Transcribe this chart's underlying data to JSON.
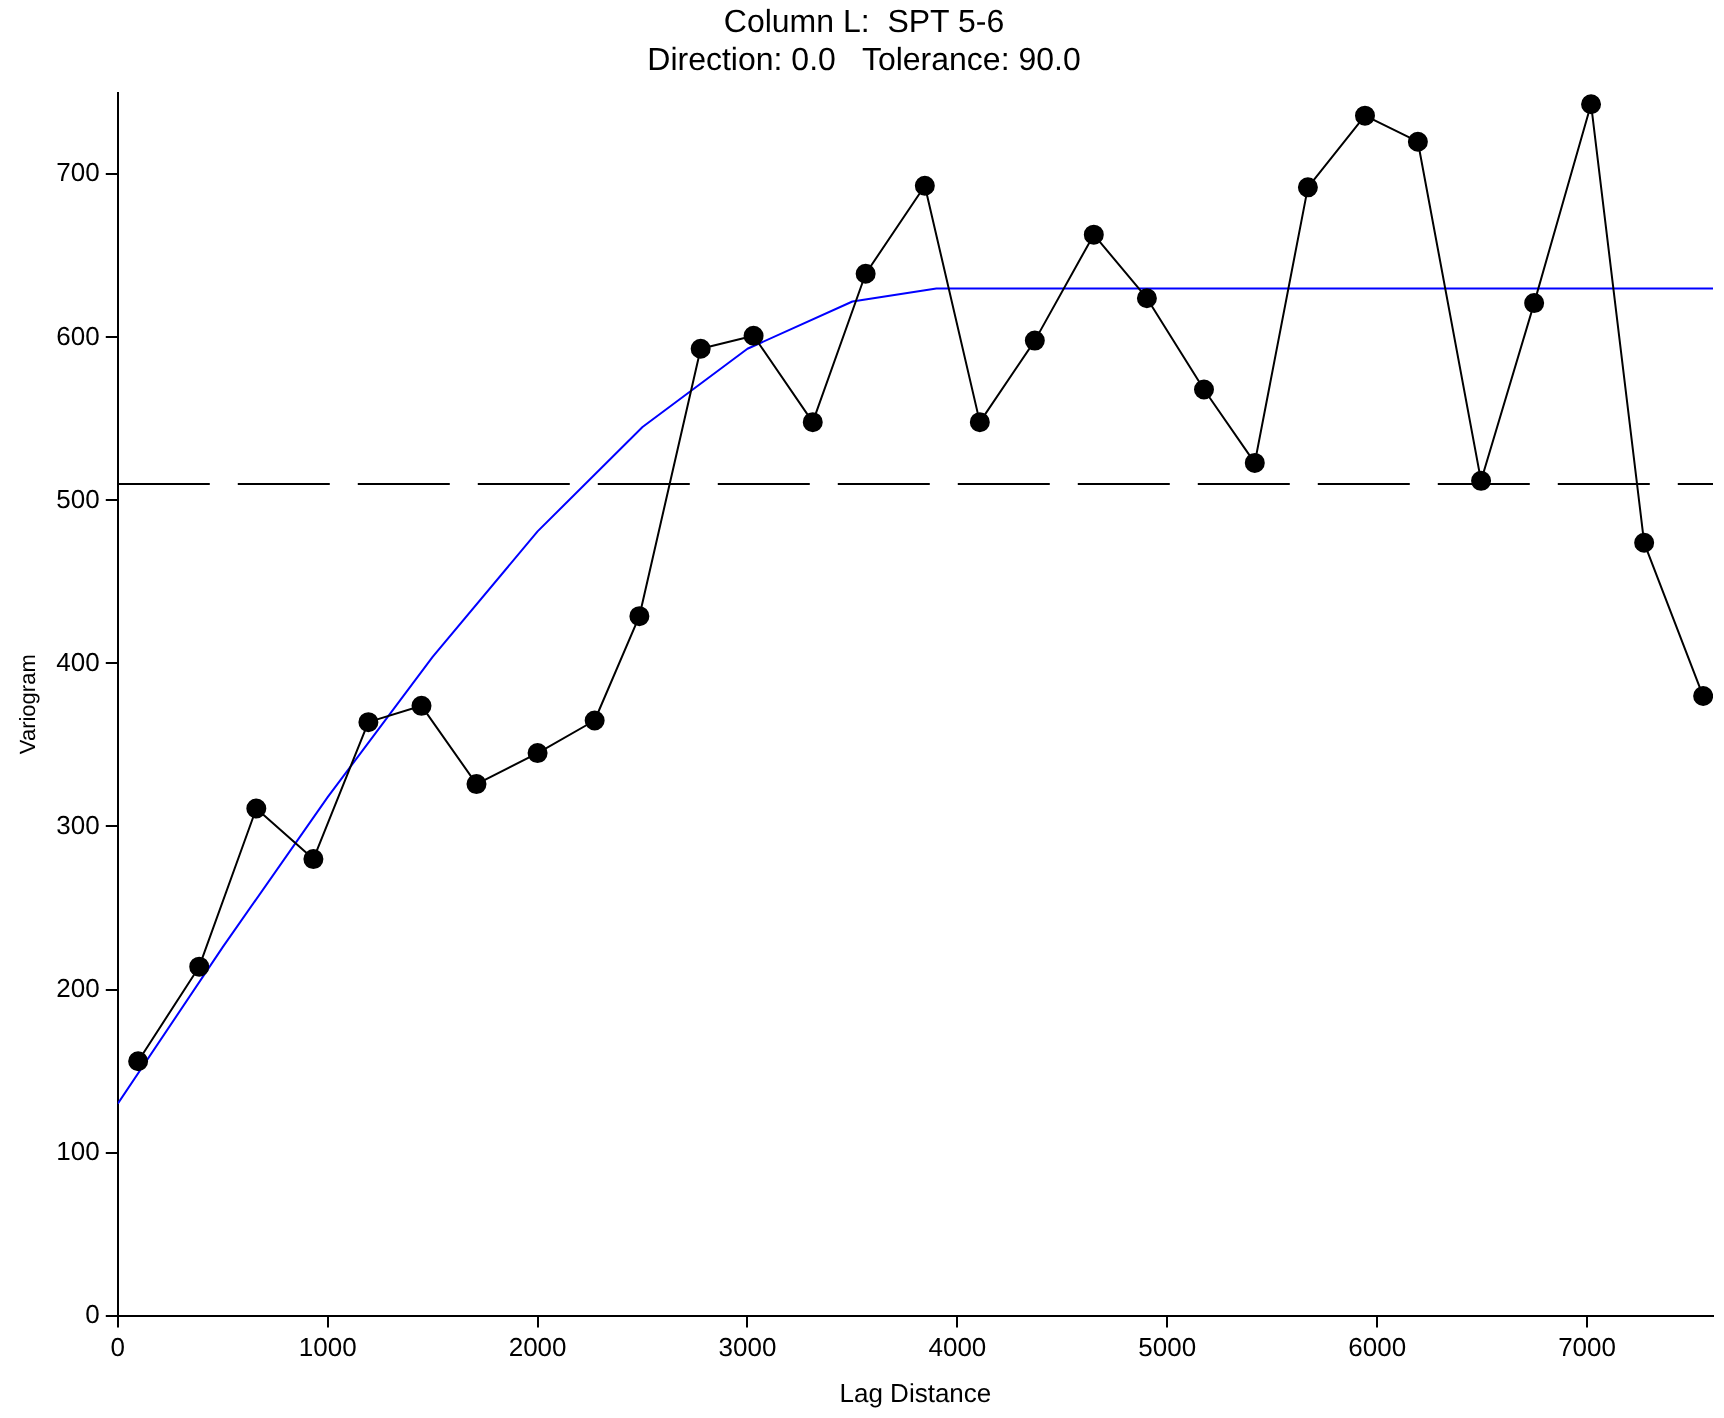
{
  "chart_data": {
    "type": "line",
    "title": "Column L:  SPT 5-6",
    "subtitle": "Direction: 0.0   Tolerance: 90.0",
    "xlabel": "Lag Distance",
    "ylabel": "Variogram",
    "xlim": [
      0,
      7600
    ],
    "xticks": [
      0,
      1000,
      2000,
      3000,
      4000,
      5000,
      6000,
      7000
    ],
    "ylim": [
      0,
      750
    ],
    "yticks": [
      0,
      100,
      200,
      300,
      400,
      500,
      600,
      700
    ],
    "grid": false,
    "legend": false,
    "series": [
      {
        "color": "#000000",
        "marker": "circle",
        "x": [
          97,
          388,
          660,
          932,
          1194,
          1447,
          1709,
          2000,
          2272,
          2485,
          2777,
          3029,
          3311,
          3563,
          3845,
          4107,
          4369,
          4650,
          4903,
          5175,
          5417,
          5670,
          5942,
          6194,
          6495,
          6748,
          7019,
          7272,
          7553
        ],
        "values": [
          156,
          214,
          311,
          280,
          364,
          374,
          326,
          345,
          365,
          429,
          593,
          601,
          548,
          639,
          693,
          548,
          598,
          663,
          624,
          568,
          523,
          692,
          736,
          720,
          512,
          621,
          743,
          474,
          380
        ]
      },
      {
        "color": "#0000ff",
        "marker": "none",
        "x": [
          0,
          500,
          1000,
          1500,
          2000,
          2500,
          3000,
          3500,
          3900,
          7600
        ],
        "values": [
          130,
          226,
          318,
          404,
          481,
          545,
          593,
          622,
          630,
          630
        ]
      }
    ],
    "ref_lines": [
      {
        "axis": "y",
        "value": 510,
        "color": "#000000",
        "line_style": "dashed"
      }
    ]
  }
}
